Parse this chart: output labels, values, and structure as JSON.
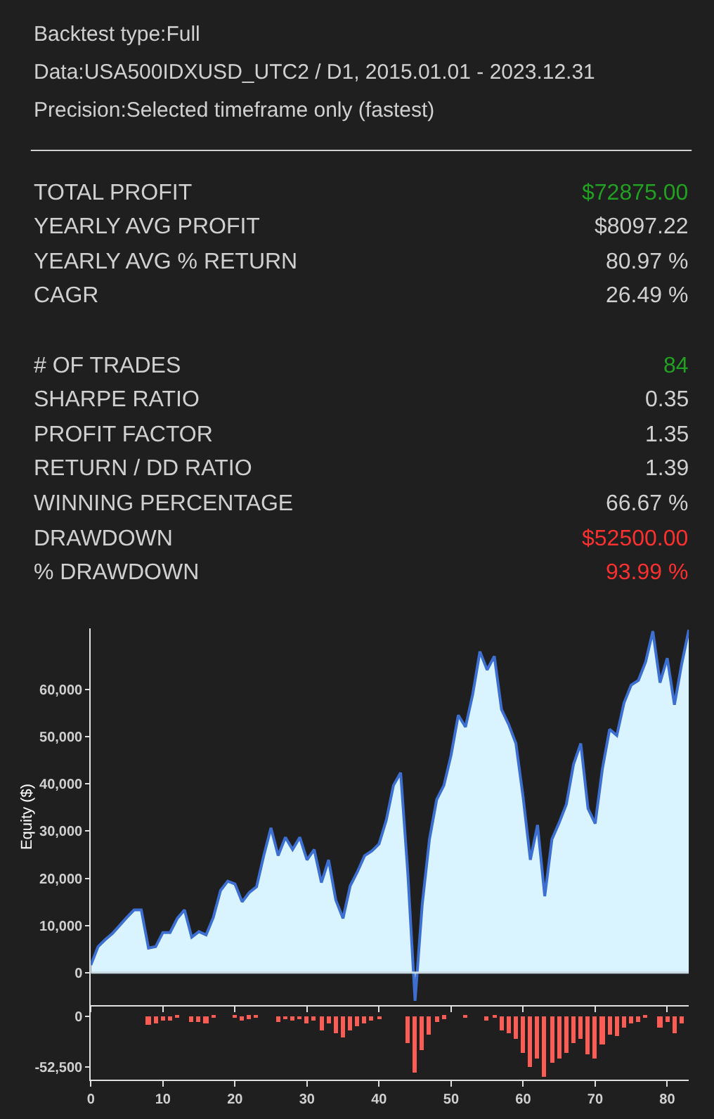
{
  "chart_data": [
    {
      "type": "other",
      "annotations": [
        "Backtest type:Full",
        "Data:USA500IDXUSD_UTC2 / D1, 2015.01.01 - 2023.12.31",
        "Precision:Selected timeframe only (fastest)"
      ],
      "categories": [
        "TOTAL PROFIT",
        "YEARLY AVG PROFIT",
        "YEARLY AVG % RETURN",
        "CAGR",
        null,
        "# OF TRADES",
        "SHARPE RATIO",
        "PROFIT FACTOR",
        "RETURN / DD RATIO",
        "WINNING PERCENTAGE",
        "DRAWDOWN",
        "% DRAWDOWN"
      ],
      "value_labels": [
        "$72875.00",
        "$8097.22",
        "80.97 %",
        "26.49 %",
        null,
        "84",
        "0.35",
        "1.35",
        "1.39",
        "66.67 %",
        "$52500.00",
        "93.99 %"
      ],
      "colors": [
        "#22a022",
        "#d0d0d0",
        "#d0d0d0",
        "#d0d0d0",
        null,
        "#22a022",
        "#d0d0d0",
        "#d0d0d0",
        "#d0d0d0",
        "#d0d0d0",
        "#ff3030",
        "#ff3030"
      ]
    },
    {
      "type": "area",
      "ylabel": "Equity ($)",
      "color": "#3d6fd0",
      "x": [
        0,
        1,
        2,
        3,
        4,
        5,
        6,
        7,
        8,
        9,
        10,
        11,
        12,
        13,
        14,
        15,
        16,
        17,
        18,
        19,
        20,
        21,
        22,
        23,
        24,
        25,
        26,
        27,
        28,
        29,
        30,
        31,
        32,
        33,
        34,
        35,
        36,
        37,
        38,
        39,
        40,
        41,
        42,
        43,
        44,
        45,
        46,
        47,
        48,
        49,
        50,
        51,
        52,
        53,
        54,
        55,
        56,
        57,
        58,
        59,
        60,
        61,
        62,
        63,
        64,
        65,
        66,
        67,
        68,
        69,
        70,
        71,
        72,
        73,
        74,
        75,
        76,
        77,
        78,
        79,
        80,
        81,
        82,
        83
      ],
      "values": [
        1600,
        5500,
        7000,
        8300,
        10000,
        11700,
        13300,
        13300,
        5200,
        5500,
        8500,
        8500,
        11500,
        13300,
        7500,
        8700,
        8000,
        11700,
        17400,
        19400,
        18800,
        15000,
        17000,
        18200,
        24800,
        30700,
        24800,
        28700,
        26100,
        28700,
        23900,
        26100,
        19100,
        23900,
        15400,
        11500,
        18400,
        21400,
        24800,
        25800,
        27300,
        32300,
        39700,
        42400,
        21000,
        -6000,
        14500,
        28300,
        36700,
        39700,
        46100,
        54600,
        52100,
        59000,
        68100,
        64200,
        67100,
        55800,
        52600,
        48600,
        37200,
        23900,
        31300,
        16200,
        28300,
        31800,
        35700,
        44200,
        48600,
        34800,
        31600,
        43200,
        51600,
        50300,
        57200,
        61000,
        62000,
        65900,
        72400,
        61500,
        66700,
        56800,
        65400,
        72700
      ],
      "xlim": [
        0,
        83
      ],
      "xticks": [
        {
          "value": 0,
          "label": null
        },
        {
          "value": 10,
          "label": null
        },
        {
          "value": 20,
          "label": null
        },
        {
          "value": 30,
          "label": null
        },
        {
          "value": 40,
          "label": null
        },
        {
          "value": 50,
          "label": null
        },
        {
          "value": 60,
          "label": null
        },
        {
          "value": 70,
          "label": null
        },
        {
          "value": 80,
          "label": null
        }
      ],
      "ylim": [
        -6900,
        73000
      ],
      "yticks": [
        0,
        {
          "value": 10000,
          "label": "10,000"
        },
        {
          "value": 20000,
          "label": "20,000"
        },
        {
          "value": 30000,
          "label": "30,000"
        },
        {
          "value": 40000,
          "label": "40,000"
        },
        {
          "value": 50000,
          "label": "50,000"
        },
        {
          "value": 60000,
          "label": "60,000"
        }
      ],
      "tick_labels": "y",
      "marker": "none"
    },
    {
      "type": "bar",
      "color": "#ff5b55",
      "x": [
        8,
        9,
        10,
        11,
        12,
        14,
        15,
        16,
        17,
        20,
        21,
        22,
        23,
        26,
        27,
        28,
        29,
        30,
        31,
        32,
        33,
        34,
        35,
        36,
        37,
        38,
        39,
        40,
        44,
        45,
        46,
        47,
        48,
        49,
        52,
        55,
        56,
        57,
        58,
        59,
        60,
        61,
        62,
        63,
        64,
        65,
        66,
        67,
        68,
        69,
        70,
        71,
        72,
        73,
        74,
        75,
        76,
        77,
        79,
        80,
        81,
        82
      ],
      "values": [
        -9000,
        -8000,
        -5000,
        -5000,
        -1000,
        -6000,
        -6000,
        -7000,
        -1000,
        -1000,
        -5000,
        -2500,
        -1000,
        -6000,
        -3000,
        -5000,
        -3000,
        -8000,
        -5000,
        -14000,
        -8000,
        -18000,
        -22000,
        -14000,
        -11000,
        -7000,
        -5000,
        -3500,
        -28000,
        -59000,
        -35500,
        -19500,
        -6000,
        -2500,
        -2000,
        -5000,
        -1000,
        -15000,
        -18000,
        -24000,
        -38500,
        -53000,
        -44000,
        -63000,
        -48500,
        -44000,
        -38500,
        -28000,
        -24000,
        -40000,
        -44000,
        -29500,
        -19500,
        -21000,
        -12000,
        -8000,
        -6500,
        -2000,
        -12000,
        -6000,
        -18000,
        -8000
      ],
      "xlim": [
        0,
        83
      ],
      "xticks": [
        0,
        10,
        20,
        30,
        40,
        50,
        60,
        70,
        80
      ],
      "ylim": [
        -65600,
        10000
      ],
      "yticks": [
        0,
        {
          "value": -52500,
          "label": "-52,500"
        }
      ]
    }
  ]
}
